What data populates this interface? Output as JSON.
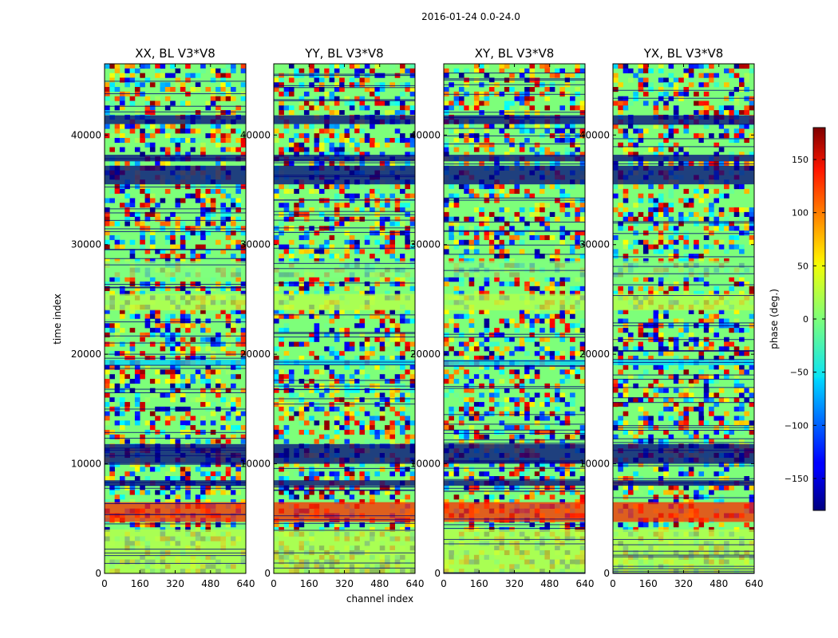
{
  "figure": {
    "suptitle": "2016-01-24 0.0-24.0",
    "ylabel": "time index",
    "xlabel": "channel index",
    "colorbar_label": "phase (deg.)"
  },
  "chart_data": {
    "type": "heatmap",
    "title": "2016-01-24 0.0-24.0",
    "xlabel": "channel index",
    "ylabel": "time index",
    "colormap": "jet",
    "panels": [
      {
        "name": "XX",
        "title": "XX, BL V3*V8"
      },
      {
        "name": "YY",
        "title": "YY, BL V3*V8"
      },
      {
        "name": "XY",
        "title": "XY, BL V3*V8"
      },
      {
        "name": "YX",
        "title": "YX, BL V3*V8"
      }
    ],
    "x_range": [
      0,
      640
    ],
    "x_ticks": [
      0,
      160,
      320,
      480,
      640
    ],
    "y_range": [
      0,
      46500
    ],
    "y_ticks": [
      0,
      10000,
      20000,
      30000,
      40000
    ],
    "colorbar": {
      "range": [
        -180,
        180
      ],
      "ticks": [
        -150,
        -100,
        -50,
        0,
        50,
        100,
        150
      ],
      "tick_labels": [
        "−150",
        "−100",
        "−50",
        "0",
        "50",
        "100",
        "150"
      ]
    },
    "bands": [
      {
        "y": [
          41000,
          41800
        ],
        "value": -180
      },
      {
        "y": [
          37600,
          38200
        ],
        "value": -180
      },
      {
        "y": [
          35500,
          37200
        ],
        "value": -180
      },
      {
        "y": [
          27000,
          28500
        ],
        "value": 0
      },
      {
        "y": [
          24000,
          25500
        ],
        "value": 20
      },
      {
        "y": [
          19000,
          19500
        ],
        "value": -60
      },
      {
        "y": [
          10000,
          11800
        ],
        "value": -180
      },
      {
        "y": [
          8000,
          8500
        ],
        "value": -180
      },
      {
        "y": [
          4700,
          6500
        ],
        "value": 120
      },
      {
        "y": [
          0,
          4000
        ],
        "value": 20
      }
    ]
  }
}
